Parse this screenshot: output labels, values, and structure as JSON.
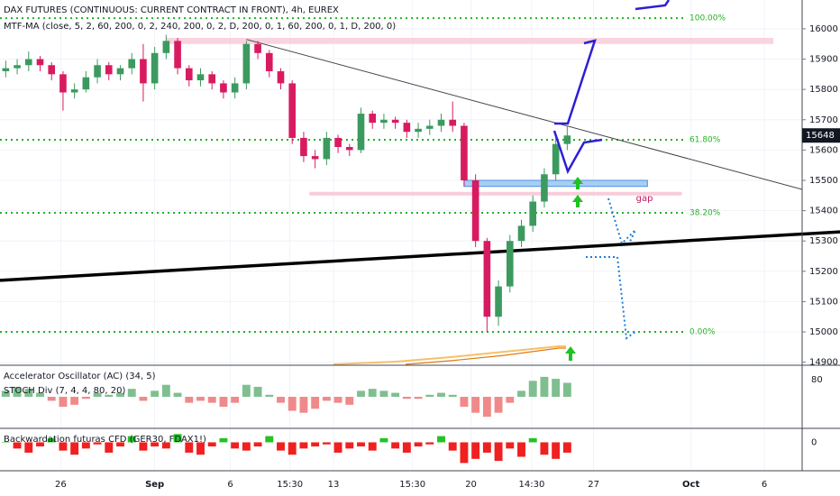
{
  "chart_data": {
    "type": "candlestick",
    "title": "DAX FUTURES (CONTINUOUS: CURRENT CONTRACT IN FRONT), 4h, EUREX",
    "subtitle": "MTF-MA (close, 5, 2, 60, 200, 0, 2, 240, 200, 0, 2, D, 200, 0, 1, 60, 200, 0, 1, D, 200, 0)",
    "up_color": "#3c9a5f",
    "down_color": "#d81b60",
    "open": [
      15860,
      15870,
      15880,
      15900,
      15880,
      15850,
      15790,
      15800,
      15840,
      15880,
      15850,
      15870,
      15900,
      15820,
      15920,
      15960,
      15870,
      15830,
      15850,
      15820,
      15790,
      15820,
      15950,
      15920,
      15860,
      15820,
      15640,
      15580,
      15570,
      15640,
      15610,
      15600,
      15720,
      15690,
      15700,
      15690,
      15660,
      15670,
      15680,
      15700,
      15680,
      15500,
      15300,
      15050,
      15150,
      15300,
      15350,
      15430,
      15520,
      15620
    ],
    "high": [
      15895,
      15900,
      15925,
      15910,
      15890,
      15860,
      15820,
      15860,
      15900,
      15890,
      15880,
      15920,
      15950,
      15940,
      15980,
      15970,
      15880,
      15870,
      15860,
      15830,
      15840,
      15960,
      15960,
      15930,
      15870,
      15830,
      15660,
      15600,
      15660,
      15650,
      15620,
      15740,
      15730,
      15720,
      15710,
      15700,
      15690,
      15700,
      15720,
      15760,
      15690,
      15520,
      15310,
      15170,
      15320,
      15370,
      15450,
      15540,
      15640,
      15680
    ],
    "low": [
      15840,
      15850,
      15860,
      15860,
      15830,
      15730,
      15770,
      15790,
      15820,
      15830,
      15830,
      15850,
      15760,
      15800,
      15900,
      15850,
      15810,
      15810,
      15800,
      15770,
      15770,
      15800,
      15900,
      15840,
      15800,
      15620,
      15560,
      15540,
      15550,
      15590,
      15580,
      15590,
      15670,
      15670,
      15670,
      15640,
      15640,
      15650,
      15660,
      15660,
      15480,
      15280,
      15000,
      15020,
      15130,
      15280,
      15330,
      15410,
      15500,
      15600
    ],
    "close": [
      15870,
      15880,
      15900,
      15880,
      15850,
      15790,
      15800,
      15840,
      15880,
      15850,
      15870,
      15900,
      15820,
      15920,
      15960,
      15870,
      15830,
      15850,
      15820,
      15790,
      15820,
      15950,
      15920,
      15860,
      15820,
      15640,
      15580,
      15570,
      15640,
      15610,
      15600,
      15720,
      15690,
      15700,
      15690,
      15660,
      15670,
      15680,
      15700,
      15680,
      15500,
      15300,
      15050,
      15150,
      15300,
      15350,
      15430,
      15520,
      15620,
      15648
    ],
    "xlim": [
      -0.5,
      69.5
    ],
    "xticks": [
      {
        "value": 4.8,
        "label": "26"
      },
      {
        "value": 13,
        "label": "Sep"
      },
      {
        "value": 19.6,
        "label": "6"
      },
      {
        "value": 24.8,
        "label": "15:30"
      },
      {
        "value": 28.6,
        "label": "13"
      },
      {
        "value": 35.5,
        "label": "15:30"
      },
      {
        "value": 40.6,
        "label": "20"
      },
      {
        "value": 45.9,
        "label": "14:30"
      },
      {
        "value": 51.3,
        "label": "27"
      },
      {
        "value": 59.8,
        "label": "Oct"
      },
      {
        "value": 66.2,
        "label": "6"
      }
    ],
    "ylim": [
      14890,
      16095
    ],
    "yticks": [
      14900,
      15000,
      15100,
      15200,
      15300,
      15400,
      15500,
      15600,
      15700,
      15800,
      15900,
      16000
    ],
    "grid": true,
    "fib_color": "#22b322",
    "fib_levels": [
      {
        "value": 16035,
        "label": "100.00%"
      },
      {
        "value": 15634,
        "label": "61.80%"
      },
      {
        "value": 15393,
        "label": "38.20%"
      },
      {
        "value": 15000,
        "label": "0.00%"
      }
    ],
    "gap_label": "gap",
    "indicators": [
      {
        "name": "Accelerator Oscillator (AC) (34, 5)",
        "second_name": "STOCH Div (7, 4, 4, 80, 20)",
        "scale_label": "80",
        "ylim": [
          -1.4,
          1.4
        ],
        "up_color": "#7fbf8f",
        "down_color": "#f08a8a",
        "values": [
          0.3,
          0.5,
          0.4,
          0.2,
          -0.2,
          -0.5,
          -0.4,
          -0.1,
          0.2,
          0.1,
          0.2,
          0.4,
          -0.2,
          0.3,
          0.6,
          0.2,
          -0.3,
          -0.2,
          -0.3,
          -0.5,
          -0.3,
          0.6,
          0.5,
          0.1,
          -0.3,
          -0.7,
          -0.8,
          -0.6,
          -0.2,
          -0.3,
          -0.4,
          0.3,
          0.4,
          0.3,
          0.2,
          -0.1,
          -0.1,
          0.1,
          0.2,
          0.1,
          -0.5,
          -0.8,
          -1.0,
          -0.8,
          -0.3,
          0.3,
          0.8,
          1.0,
          0.9,
          0.7
        ]
      },
      {
        "name": "Backwardation futuras CFD (GER30, FDAX1!)",
        "scale_label": "0",
        "ylim": [
          -1.2,
          0.5
        ],
        "up_color": "#22c322",
        "down_color": "#f02020",
        "values": [
          0,
          -0.3,
          -0.5,
          -0.2,
          0.2,
          -0.4,
          -0.6,
          -0.3,
          -0.1,
          -0.5,
          -0.2,
          0.3,
          -0.4,
          -0.2,
          -0.3,
          0.4,
          -0.5,
          -0.6,
          -0.2,
          0.2,
          -0.3,
          -0.4,
          -0.2,
          0.3,
          -0.4,
          -0.6,
          -0.3,
          -0.2,
          -0.1,
          -0.5,
          -0.3,
          -0.2,
          -0.4,
          0.2,
          -0.3,
          -0.5,
          -0.2,
          -0.1,
          0.3,
          -0.4,
          -1.0,
          -0.8,
          -0.5,
          -0.9,
          -0.3,
          -0.7,
          0.2,
          -0.6,
          -0.8,
          -0.5
        ]
      }
    ]
  }
}
